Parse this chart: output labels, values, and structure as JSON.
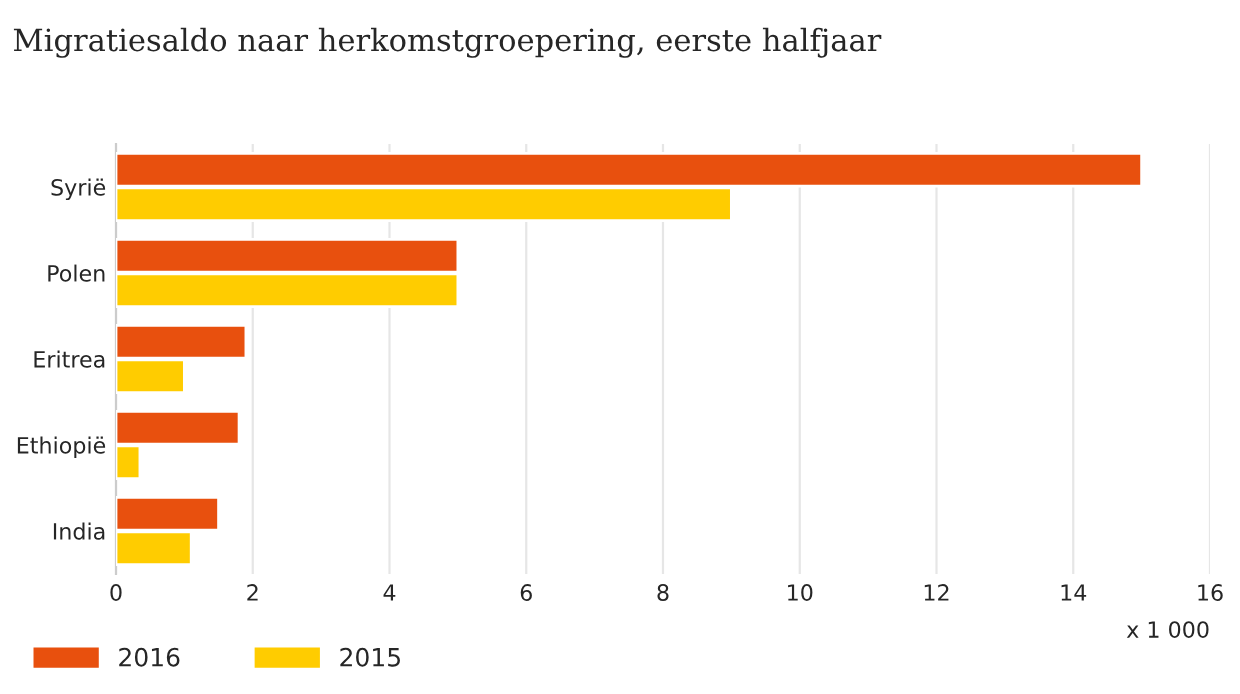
{
  "chart_data": {
    "type": "bar",
    "orientation": "horizontal",
    "title": "Migratiesaldo naar herkomstgroepering, eerste halfjaar",
    "xlabel": "x 1 000",
    "categories": [
      "Syrië",
      "Polen",
      "Eritrea",
      "Ethiopië",
      "India"
    ],
    "series": [
      {
        "name": "2016",
        "color": "#e8500e",
        "values": [
          15,
          5,
          1.9,
          1.8,
          1.5
        ]
      },
      {
        "name": "2015",
        "color": "#ffcc00",
        "values": [
          9,
          5,
          1.0,
          0.35,
          1.1
        ]
      }
    ],
    "xlim": [
      0,
      16
    ],
    "xticks": [
      0,
      2,
      4,
      6,
      8,
      10,
      12,
      14,
      16
    ],
    "grid": "x",
    "legend": "bottom left"
  }
}
